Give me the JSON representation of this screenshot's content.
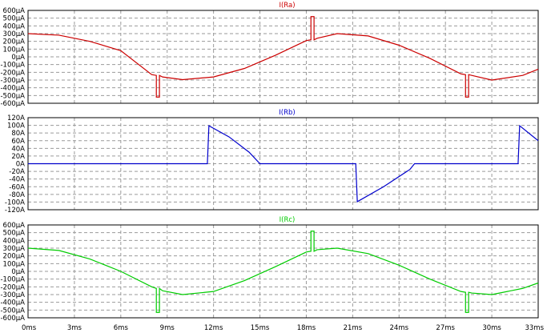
{
  "chart_data": {
    "type": "line",
    "x_ticks": [
      "0ms",
      "3ms",
      "6ms",
      "9ms",
      "12ms",
      "15ms",
      "18ms",
      "21ms",
      "24ms",
      "27ms",
      "30ms",
      "33ms"
    ],
    "xlim_ms": [
      0,
      33
    ],
    "grid": true,
    "panels": [
      {
        "title": "I(Ra)",
        "color": "#cc0000",
        "ylim": [
          -600,
          600
        ],
        "y_ticks": [
          "600µA",
          "500µA",
          "400µA",
          "300µA",
          "200µA",
          "100µA",
          "0µA",
          "-100µA",
          "-200µA",
          "-300µA",
          "-400µA",
          "-500µA",
          "-600µA"
        ],
        "series": [
          {
            "x": [
              0,
              2,
              4,
              6,
              8,
              8.3,
              8.3,
              8.5,
              8.5,
              8.7,
              10,
              12,
              14,
              16,
              18,
              18.3,
              18.3,
              18.5,
              18.5,
              18.7,
              20,
              22,
              24,
              26,
              28,
              28.3,
              28.3,
              28.5,
              28.5,
              28.7,
              30,
              32,
              33
            ],
            "y": [
              300,
              280,
              200,
              80,
              -230,
              -240,
              -520,
              -520,
              -240,
              -260,
              -295,
              -260,
              -150,
              20,
              210,
              220,
              520,
              520,
              220,
              240,
              300,
              270,
              150,
              -20,
              -220,
              -230,
              -520,
              -520,
              -230,
              -240,
              -300,
              -240,
              -160
            ]
          }
        ]
      },
      {
        "title": "I(Rb)",
        "color": "#0000cc",
        "ylim": [
          -120,
          120
        ],
        "y_ticks": [
          "120A",
          "100A",
          "80A",
          "60A",
          "40A",
          "20A",
          "0A",
          "-20A",
          "-40A",
          "-60A",
          "-80A",
          "-100A",
          "-120A"
        ],
        "series": [
          {
            "x": [
              0,
              11.6,
              11.7,
              13,
              14.3,
              15,
              21.2,
              21.3,
              23,
              24.7,
              25,
              31.7,
              31.8,
              33
            ],
            "y": [
              0,
              0,
              99,
              70,
              30,
              0,
              0,
              -99,
              -60,
              -15,
              0,
              0,
              99,
              60
            ]
          }
        ]
      },
      {
        "title": "I(Rc)",
        "color": "#00cc00",
        "ylim": [
          -600,
          600
        ],
        "y_ticks": [
          "600µA",
          "500µA",
          "400µA",
          "300µA",
          "200µA",
          "100µA",
          "0µA",
          "-100µA",
          "-200µA",
          "-300µA",
          "-400µA",
          "-500µA",
          "-600µA"
        ],
        "series": [
          {
            "x": [
              0,
              2,
              4,
              6,
              8,
              8.3,
              8.3,
              8.5,
              8.5,
              8.7,
              10,
              12,
              14,
              16,
              18,
              18.3,
              18.3,
              18.5,
              18.5,
              18.7,
              20,
              22,
              24,
              26,
              28,
              28.3,
              28.3,
              28.5,
              28.5,
              28.7,
              30,
              32,
              33
            ],
            "y": [
              300,
              270,
              160,
              0,
              -200,
              -220,
              -530,
              -530,
              -220,
              -250,
              -300,
              -260,
              -120,
              60,
              250,
              260,
              520,
              520,
              260,
              280,
              300,
              230,
              80,
              -100,
              -260,
              -270,
              -530,
              -530,
              -270,
              -280,
              -300,
              -220,
              -150
            ]
          }
        ]
      }
    ]
  }
}
